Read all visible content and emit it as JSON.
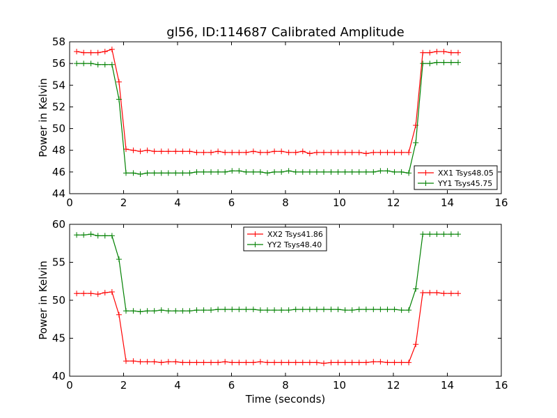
{
  "title": "gl56, ID:114687 Calibrated Amplitude",
  "colors": {
    "red": "#ff0000",
    "green": "#008000"
  },
  "chart_data": [
    {
      "type": "line",
      "ylabel": "Power in Kelvin",
      "xlabel": "",
      "xlim": [
        0,
        16
      ],
      "ylim": [
        44,
        58
      ],
      "xticks": [
        0,
        2,
        4,
        6,
        8,
        10,
        12,
        14,
        16
      ],
      "yticks": [
        44,
        46,
        48,
        50,
        52,
        54,
        56,
        58
      ],
      "legend_position": "lower-right",
      "x": [
        0.26,
        0.52,
        0.79,
        1.05,
        1.31,
        1.57,
        1.83,
        2.09,
        2.36,
        2.62,
        2.88,
        3.14,
        3.4,
        3.66,
        3.93,
        4.19,
        4.45,
        4.71,
        4.97,
        5.24,
        5.5,
        5.76,
        6.02,
        6.28,
        6.54,
        6.81,
        7.07,
        7.33,
        7.59,
        7.85,
        8.12,
        8.38,
        8.64,
        8.9,
        9.16,
        9.42,
        9.69,
        9.95,
        10.21,
        10.47,
        10.73,
        10.99,
        11.26,
        11.52,
        11.78,
        12.04,
        12.3,
        12.57,
        12.83,
        13.09,
        13.35,
        13.61,
        13.87,
        14.14,
        14.4
      ],
      "series": [
        {
          "name": "XX1 Tsys48.05",
          "color": "#ff0000",
          "values": [
            57.1,
            57.0,
            57.0,
            57.0,
            57.1,
            57.3,
            54.3,
            48.1,
            48.0,
            47.9,
            48.0,
            47.9,
            47.9,
            47.9,
            47.9,
            47.9,
            47.9,
            47.8,
            47.8,
            47.8,
            47.9,
            47.8,
            47.8,
            47.8,
            47.8,
            47.9,
            47.8,
            47.8,
            47.9,
            47.9,
            47.8,
            47.8,
            47.9,
            47.7,
            47.8,
            47.8,
            47.8,
            47.8,
            47.8,
            47.8,
            47.8,
            47.7,
            47.8,
            47.8,
            47.8,
            47.8,
            47.8,
            47.8,
            50.3,
            57.0,
            57.0,
            57.1,
            57.1,
            57.0,
            57.0
          ]
        },
        {
          "name": "YY1 Tsys45.75",
          "color": "#008000",
          "values": [
            56.0,
            56.0,
            56.0,
            55.9,
            55.9,
            55.9,
            52.7,
            45.9,
            45.9,
            45.8,
            45.9,
            45.9,
            45.9,
            45.9,
            45.9,
            45.9,
            45.9,
            46.0,
            46.0,
            46.0,
            46.0,
            46.0,
            46.1,
            46.1,
            46.0,
            46.0,
            46.0,
            45.9,
            46.0,
            46.0,
            46.1,
            46.0,
            46.0,
            46.0,
            46.0,
            46.0,
            46.0,
            46.0,
            46.0,
            46.0,
            46.0,
            46.0,
            46.0,
            46.1,
            46.1,
            46.0,
            46.0,
            45.9,
            48.7,
            56.0,
            56.0,
            56.1,
            56.1,
            56.1,
            56.1
          ]
        }
      ]
    },
    {
      "type": "line",
      "ylabel": "Power in Kelvin",
      "xlabel": "Time (seconds)",
      "xlim": [
        0,
        16
      ],
      "ylim": [
        40,
        60
      ],
      "xticks": [
        0,
        2,
        4,
        6,
        8,
        10,
        12,
        14,
        16
      ],
      "yticks": [
        40,
        45,
        50,
        55,
        60
      ],
      "legend_position": "upper-center",
      "x": [
        0.26,
        0.52,
        0.79,
        1.05,
        1.31,
        1.57,
        1.83,
        2.09,
        2.36,
        2.62,
        2.88,
        3.14,
        3.4,
        3.66,
        3.93,
        4.19,
        4.45,
        4.71,
        4.97,
        5.24,
        5.5,
        5.76,
        6.02,
        6.28,
        6.54,
        6.81,
        7.07,
        7.33,
        7.59,
        7.85,
        8.12,
        8.38,
        8.64,
        8.9,
        9.16,
        9.42,
        9.69,
        9.95,
        10.21,
        10.47,
        10.73,
        10.99,
        11.26,
        11.52,
        11.78,
        12.04,
        12.3,
        12.57,
        12.83,
        13.09,
        13.35,
        13.61,
        13.87,
        14.14,
        14.4
      ],
      "series": [
        {
          "name": "XX2 Tsys41.86",
          "color": "#ff0000",
          "values": [
            50.9,
            50.9,
            50.9,
            50.8,
            51.0,
            51.1,
            48.1,
            42.0,
            42.0,
            41.9,
            41.9,
            41.9,
            41.8,
            41.9,
            41.9,
            41.8,
            41.8,
            41.8,
            41.8,
            41.8,
            41.8,
            41.9,
            41.8,
            41.8,
            41.8,
            41.8,
            41.9,
            41.8,
            41.8,
            41.8,
            41.8,
            41.8,
            41.8,
            41.8,
            41.8,
            41.7,
            41.8,
            41.8,
            41.8,
            41.8,
            41.8,
            41.8,
            41.9,
            41.9,
            41.8,
            41.8,
            41.8,
            41.8,
            44.2,
            51.0,
            51.0,
            51.0,
            50.9,
            50.9,
            50.9
          ]
        },
        {
          "name": "YY2 Tsys48.40",
          "color": "#008000",
          "values": [
            58.6,
            58.6,
            58.7,
            58.5,
            58.5,
            58.5,
            55.4,
            48.6,
            48.6,
            48.5,
            48.6,
            48.6,
            48.7,
            48.6,
            48.6,
            48.6,
            48.6,
            48.7,
            48.7,
            48.7,
            48.8,
            48.8,
            48.8,
            48.8,
            48.8,
            48.8,
            48.7,
            48.7,
            48.7,
            48.7,
            48.7,
            48.8,
            48.8,
            48.8,
            48.8,
            48.8,
            48.8,
            48.8,
            48.7,
            48.7,
            48.8,
            48.8,
            48.8,
            48.8,
            48.8,
            48.8,
            48.7,
            48.7,
            51.5,
            58.7,
            58.7,
            58.7,
            58.7,
            58.7,
            58.7
          ]
        }
      ]
    }
  ]
}
